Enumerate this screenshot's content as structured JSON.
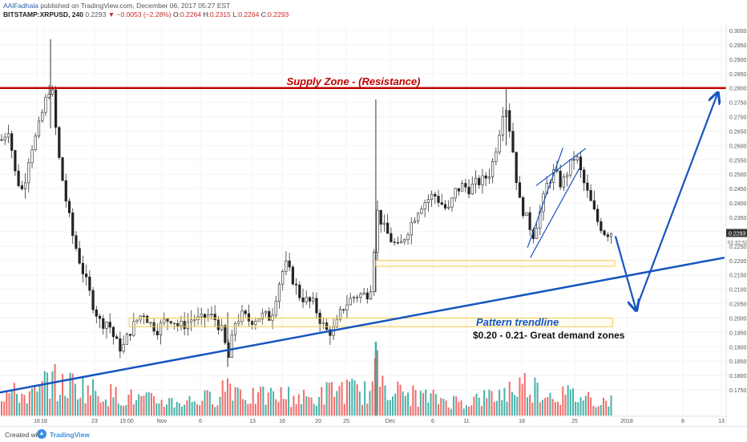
{
  "header": {
    "author": "AAlFadhala",
    "published": " published on TradingView.com, December 06, 2017 05:27 EST",
    "symbol": "BITSTAMP:XRPUSD, 240",
    "last": "0.2293",
    "arrow": "▼",
    "change": "−0.0053 (−2.28%)",
    "o_label": "O:",
    "o": "0.2264",
    "h_label": "H:",
    "h": "0.2315",
    "l_label": "L:",
    "l": "0.2264",
    "c_label": "C:",
    "c": "0.2293"
  },
  "footer": {
    "created_label": "Created with",
    "brand": "TradingView"
  },
  "annotations": {
    "supply": "Supply Zone - (Resistance)",
    "trendline": "Pattern trendline",
    "demand": "$0.20 - 0.21- Great demand zones"
  },
  "colors": {
    "up": "#26a69a",
    "down": "#ef5350",
    "wick": "#333333",
    "supply_line": "#c00000",
    "annotation_blue": "#1655c0",
    "zone_border": "#f2c94c",
    "price_axis_last": "#333333"
  },
  "chart_data": {
    "type": "candlestick",
    "y_axis": {
      "ylim": [
        0.17,
        0.3
      ],
      "ticks": [
        "0.3000",
        "0.2950",
        "0.2900",
        "0.2850",
        "0.2800",
        "0.2750",
        "0.2700",
        "0.2650",
        "0.2600",
        "0.2550",
        "0.2500",
        "0.2450",
        "0.2400",
        "0.2350",
        "0.2300",
        "0.2250",
        "0.2200",
        "0.2150",
        "0.2100",
        "0.2050",
        "0.2000",
        "0.1950",
        "0.1900",
        "0.1850",
        "0.1800",
        "0.1750"
      ],
      "last_price": "0.2293",
      "countdown": "01:32:53"
    },
    "x_axis": {
      "ticks": [
        "16",
        "18",
        "23",
        "15:00",
        "Nov",
        "6",
        "13",
        "16",
        "20",
        "25",
        "Dec",
        "6",
        "11",
        "18",
        "25",
        "2018",
        "8",
        "13"
      ]
    },
    "close_path": [
      [
        0,
        0.262
      ],
      [
        1,
        0.266
      ],
      [
        2,
        0.249
      ],
      [
        3,
        0.244
      ],
      [
        4,
        0.258
      ],
      [
        5,
        0.264
      ],
      [
        6,
        0.274
      ],
      [
        7,
        0.282
      ],
      [
        8,
        0.257
      ],
      [
        9,
        0.242
      ],
      [
        10,
        0.229
      ],
      [
        11,
        0.22
      ],
      [
        12,
        0.212
      ],
      [
        13,
        0.204
      ],
      [
        14,
        0.198
      ],
      [
        15,
        0.199
      ],
      [
        16,
        0.192
      ],
      [
        17,
        0.189
      ],
      [
        18,
        0.195
      ],
      [
        19,
        0.199
      ],
      [
        20,
        0.202
      ],
      [
        21,
        0.198
      ],
      [
        22,
        0.196
      ],
      [
        23,
        0.199
      ],
      [
        24,
        0.2
      ],
      [
        25,
        0.197
      ],
      [
        26,
        0.198
      ],
      [
        27,
        0.2
      ],
      [
        28,
        0.199
      ],
      [
        29,
        0.201
      ],
      [
        30,
        0.2
      ],
      [
        31,
        0.196
      ],
      [
        32,
        0.186
      ],
      [
        33,
        0.199
      ],
      [
        34,
        0.201
      ],
      [
        35,
        0.199
      ],
      [
        36,
        0.2
      ],
      [
        37,
        0.201
      ],
      [
        38,
        0.2
      ],
      [
        39,
        0.211
      ],
      [
        40,
        0.219
      ],
      [
        41,
        0.214
      ],
      [
        42,
        0.208
      ],
      [
        43,
        0.206
      ],
      [
        44,
        0.205
      ],
      [
        45,
        0.199
      ],
      [
        46,
        0.195
      ],
      [
        47,
        0.196
      ],
      [
        48,
        0.203
      ],
      [
        49,
        0.206
      ],
      [
        50,
        0.208
      ],
      [
        51,
        0.208
      ],
      [
        52,
        0.209
      ],
      [
        53,
        0.237
      ],
      [
        54,
        0.231
      ],
      [
        55,
        0.227
      ],
      [
        56,
        0.224
      ],
      [
        57,
        0.229
      ],
      [
        58,
        0.234
      ],
      [
        59,
        0.239
      ],
      [
        60,
        0.241
      ],
      [
        61,
        0.243
      ],
      [
        62,
        0.24
      ],
      [
        63,
        0.237
      ],
      [
        64,
        0.244
      ],
      [
        65,
        0.246
      ],
      [
        66,
        0.245
      ],
      [
        67,
        0.247
      ],
      [
        68,
        0.248
      ],
      [
        69,
        0.251
      ],
      [
        70,
        0.262
      ],
      [
        71,
        0.276
      ],
      [
        72,
        0.261
      ],
      [
        73,
        0.241
      ],
      [
        74,
        0.235
      ],
      [
        75,
        0.229
      ],
      [
        76,
        0.237
      ],
      [
        77,
        0.247
      ],
      [
        78,
        0.251
      ],
      [
        79,
        0.246
      ],
      [
        80,
        0.252
      ],
      [
        81,
        0.257
      ],
      [
        82,
        0.248
      ],
      [
        83,
        0.241
      ],
      [
        84,
        0.234
      ],
      [
        85,
        0.23
      ],
      [
        86,
        0.2293
      ]
    ],
    "volume_path": [
      [
        0,
        0.5
      ],
      [
        5,
        0.45
      ],
      [
        7,
        0.9
      ],
      [
        8,
        0.6
      ],
      [
        10,
        0.7
      ],
      [
        14,
        0.5
      ],
      [
        20,
        0.35
      ],
      [
        25,
        0.3
      ],
      [
        30,
        0.4
      ],
      [
        32,
        0.75
      ],
      [
        35,
        0.4
      ],
      [
        40,
        0.45
      ],
      [
        44,
        0.35
      ],
      [
        47,
        0.6
      ],
      [
        52,
        0.5
      ],
      [
        53,
        1.0
      ],
      [
        56,
        0.5
      ],
      [
        60,
        0.4
      ],
      [
        65,
        0.3
      ],
      [
        70,
        0.45
      ],
      [
        72,
        0.6
      ],
      [
        74,
        0.7
      ],
      [
        77,
        0.5
      ],
      [
        80,
        0.45
      ],
      [
        83,
        0.4
      ],
      [
        86,
        0.3
      ]
    ],
    "supply_level": 0.28,
    "demand_zones": [
      [
        0.218,
        0.22
      ],
      [
        0.197,
        0.2
      ]
    ],
    "trendline": {
      "from": [
        -0.5,
        0.174
      ],
      "to": [
        102,
        0.221
      ]
    },
    "projection_arrows": [
      {
        "from": [
          86.6,
          0.2285
        ],
        "to": [
          89.5,
          0.203
        ]
      },
      {
        "from": [
          89.5,
          0.203
        ],
        "to": [
          101,
          0.278
        ]
      }
    ],
    "wedge_lines": [
      {
        "from": [
          74.6,
          0.221
        ],
        "to": [
          81.5,
          0.252
        ]
      },
      {
        "from": [
          75.4,
          0.246
        ],
        "to": [
          82.4,
          0.259
        ]
      },
      {
        "from": [
          74.2,
          0.2245
        ],
        "to": [
          79.2,
          0.2592
        ]
      }
    ]
  }
}
